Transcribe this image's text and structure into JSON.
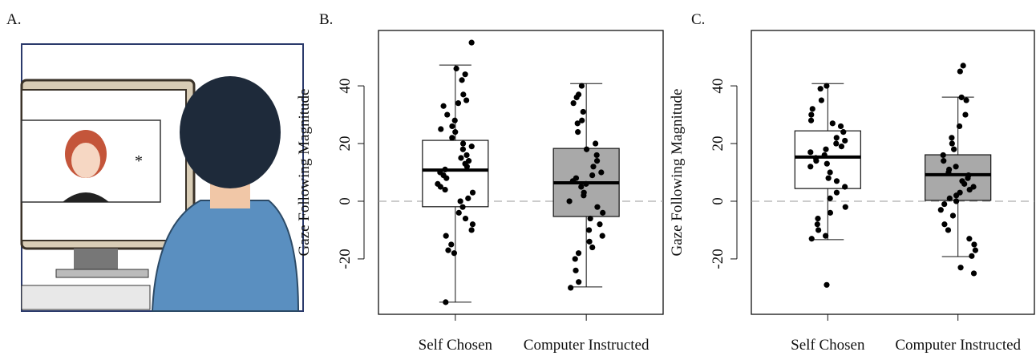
{
  "illustration": {
    "label": "A."
  },
  "chart_data": [
    {
      "type": "box",
      "panel_label": "B.",
      "ylabel": "Gaze Following Magnitude",
      "categories": [
        "Self Chosen",
        "Computer Instructed"
      ],
      "ylim": [
        -39.2,
        59.2
      ],
      "yticks": [
        -20,
        0,
        20,
        40
      ],
      "reference_line": 0,
      "boxes": [
        {
          "color": "#ffffff",
          "whisker_low": -35,
          "q1": -1.9,
          "median": 10.8,
          "q3": 21.1,
          "whisker_high": 47.2,
          "points": [
            55,
            46,
            44,
            42,
            37,
            35,
            34,
            33,
            30,
            28,
            26,
            25,
            24,
            22,
            20,
            19,
            18,
            16,
            15,
            14,
            13,
            12,
            11,
            10,
            9,
            8,
            6,
            5,
            4,
            3,
            1,
            0,
            -2,
            -4,
            -6,
            -8,
            -10,
            -12,
            -15,
            -17,
            -18,
            -35
          ]
        },
        {
          "color": "#a9a9a9",
          "whisker_low": -29.7,
          "q1": -5.3,
          "median": 6.4,
          "q3": 18.3,
          "whisker_high": 40.8,
          "points": [
            40,
            37,
            36,
            34,
            31,
            28,
            27,
            24,
            20,
            18,
            16,
            14,
            12,
            10,
            9,
            8,
            7,
            6,
            5,
            3,
            2,
            0,
            -2,
            -4,
            -6,
            -8,
            -10,
            -12,
            -14,
            -16,
            -18,
            -20,
            -24,
            -28,
            -30
          ]
        }
      ]
    },
    {
      "type": "box",
      "panel_label": "C.",
      "ylabel": "Gaze Following Magnitude",
      "categories": [
        "Self Chosen",
        "Computer Instructed"
      ],
      "ylim": [
        -39.2,
        59.2
      ],
      "yticks": [
        -20,
        0,
        20,
        40
      ],
      "reference_line": 0,
      "boxes": [
        {
          "color": "#ffffff",
          "whisker_low": -13.3,
          "q1": 4.4,
          "median": 15.3,
          "q3": 24.4,
          "whisker_high": 40.8,
          "points": [
            40,
            39,
            35,
            32,
            30,
            28,
            27,
            26,
            24,
            22,
            21,
            20,
            19,
            18,
            17,
            16,
            15,
            14,
            13,
            12,
            10,
            8,
            7,
            5,
            3,
            1,
            -2,
            -4,
            -6,
            -8,
            -10,
            -12,
            -13,
            -29
          ]
        },
        {
          "color": "#a9a9a9",
          "whisker_low": -19.2,
          "q1": 0.3,
          "median": 9.2,
          "q3": 16.1,
          "whisker_high": 36.1,
          "points": [
            47,
            45,
            36,
            35,
            30,
            26,
            22,
            20,
            18,
            16,
            14,
            12,
            11,
            10,
            9,
            8,
            7,
            6,
            5,
            4,
            3,
            2,
            1,
            0,
            -1,
            -3,
            -5,
            -8,
            -10,
            -13,
            -15,
            -17,
            -19,
            -23,
            -25
          ]
        }
      ]
    }
  ]
}
